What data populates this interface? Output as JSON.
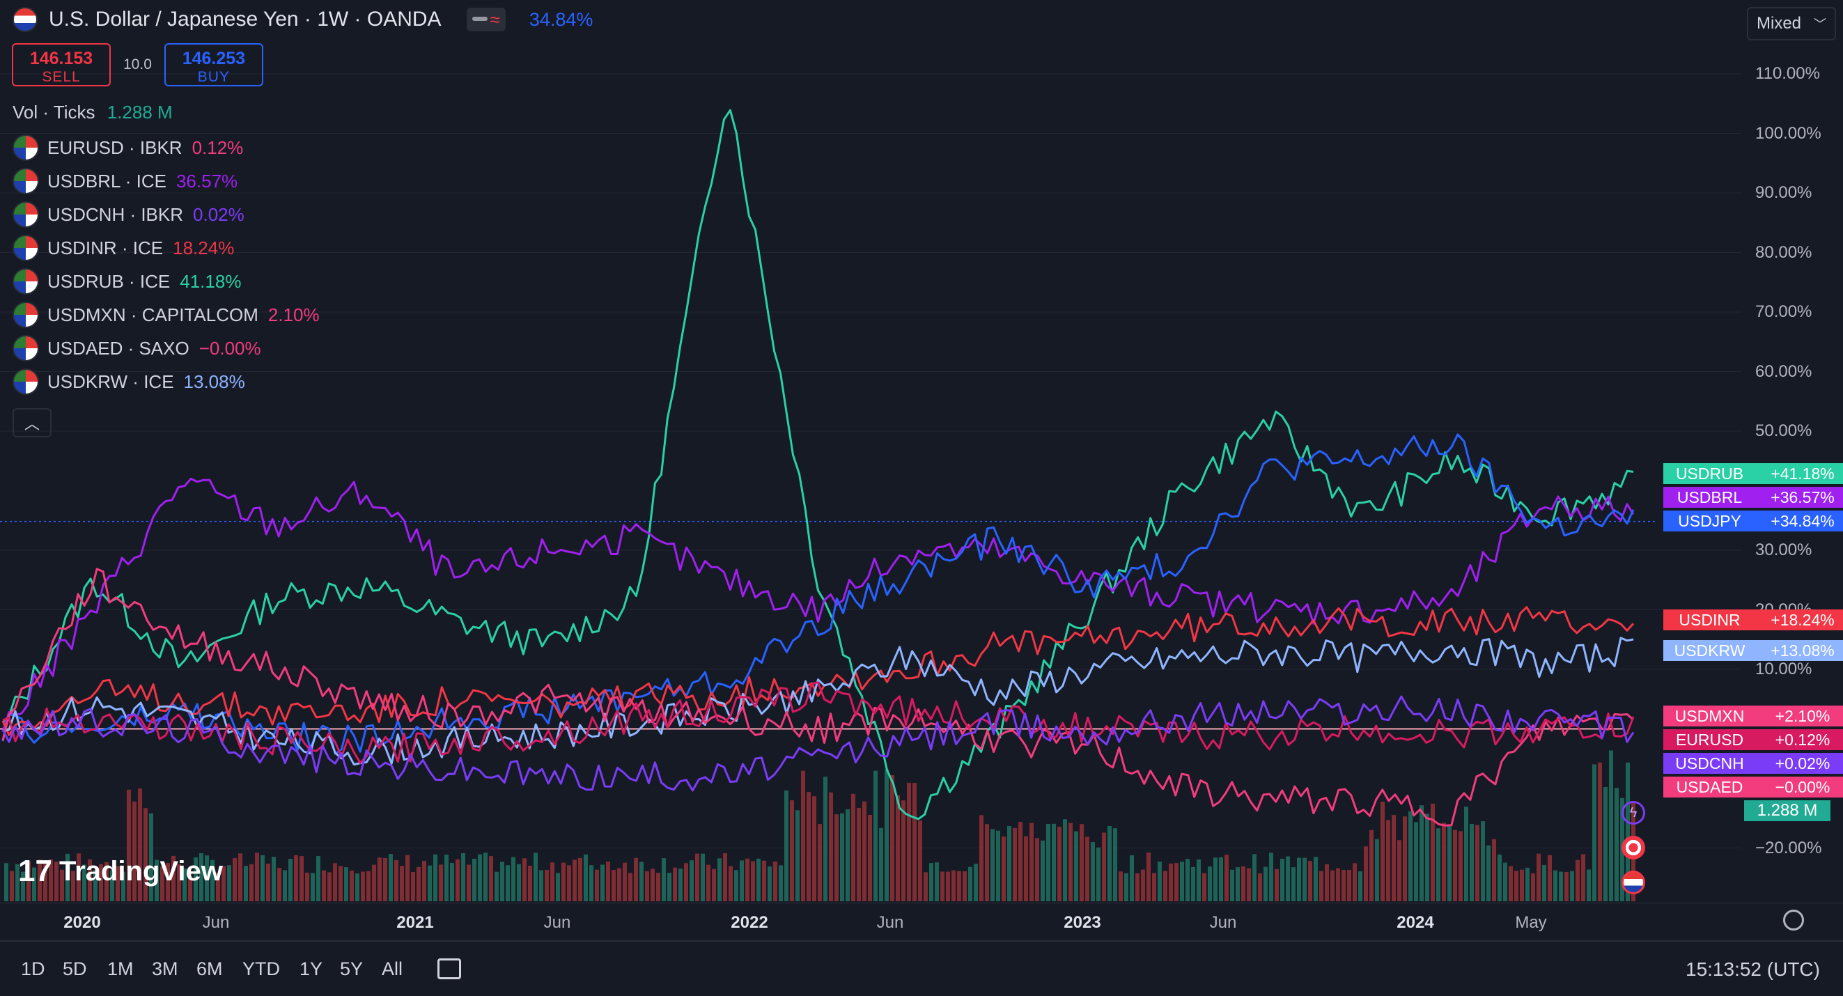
{
  "header": {
    "title": "U.S. Dollar / Japanese Yen · 1W · OANDA",
    "percent": "34.84%"
  },
  "trade": {
    "sell_price": "146.153",
    "sell_label": "SELL",
    "spread": "10.0",
    "buy_price": "146.253",
    "buy_label": "BUY"
  },
  "volume": {
    "label": "Vol · Ticks",
    "value": "1.288 M"
  },
  "legend": [
    {
      "label": "EURUSD · IBKR",
      "pct": "0.12%",
      "color": "#f23c7d"
    },
    {
      "label": "USDBRL · ICE",
      "pct": "36.57%",
      "color": "#a020f0"
    },
    {
      "label": "USDCNH · IBKR",
      "pct": "0.02%",
      "color": "#7b3cf7"
    },
    {
      "label": "USDINR · ICE",
      "pct": "18.24%",
      "color": "#f23645"
    },
    {
      "label": "USDRUB · ICE",
      "pct": "41.18%",
      "color": "#2ad0a6"
    },
    {
      "label": "USDMXN · CAPITALCOM",
      "pct": "2.10%",
      "color": "#f23c7d"
    },
    {
      "label": "USDAED · SAXO",
      "pct": "−0.00%",
      "color": "#f23c7d"
    },
    {
      "label": "USDKRW · ICE",
      "pct": "13.08%",
      "color": "#8fb5ff"
    }
  ],
  "scale_mode": "Mixed",
  "y_axis": [
    "110.00%",
    "100.00%",
    "90.00%",
    "80.00%",
    "70.00%",
    "60.00%",
    "50.00%",
    "30.00%",
    "20.00%",
    "10.00%",
    "−20.00%"
  ],
  "right_tags": [
    {
      "name": "USDRUB",
      "pct": "+41.18%",
      "color": "#2ad0a6"
    },
    {
      "name": "USDBRL",
      "pct": "+36.57%",
      "color": "#a020f0"
    },
    {
      "name": "USDJPY",
      "pct": "+34.84%",
      "color": "#2962ff"
    },
    {
      "name": "USDINR",
      "pct": "+18.24%",
      "color": "#f23645"
    },
    {
      "name": "USDKRW",
      "pct": "+13.08%",
      "color": "#8fb5ff"
    },
    {
      "name": "USDMXN",
      "pct": "+2.10%",
      "color": "#f23c7d"
    },
    {
      "name": "EURUSD",
      "pct": "+0.12%",
      "color": "#d81b60"
    },
    {
      "name": "USDCNH",
      "pct": "+0.02%",
      "color": "#7b3cf7"
    },
    {
      "name": "USDAED",
      "pct": "−0.00%",
      "color": "#f23c7d"
    }
  ],
  "volume_tag": "1.288 M",
  "x_axis": [
    {
      "label": "2020",
      "bold": true
    },
    {
      "label": "Jun",
      "bold": false
    },
    {
      "label": "2021",
      "bold": true
    },
    {
      "label": "Jun",
      "bold": false
    },
    {
      "label": "2022",
      "bold": true
    },
    {
      "label": "Jun",
      "bold": false
    },
    {
      "label": "2023",
      "bold": true
    },
    {
      "label": "Jun",
      "bold": false
    },
    {
      "label": "2024",
      "bold": true
    },
    {
      "label": "May",
      "bold": false
    }
  ],
  "ranges": [
    "1D",
    "5D",
    "1M",
    "3M",
    "6M",
    "YTD",
    "1Y",
    "5Y",
    "All"
  ],
  "clock": "15:13:52 (UTC)",
  "watermark": "TradingView",
  "chart_data": {
    "type": "line",
    "x": [
      "2020-01",
      "2020-03",
      "2020-06",
      "2020-09",
      "2021-01",
      "2021-06",
      "2021-09",
      "2022-01",
      "2022-03",
      "2022-04",
      "2022-06",
      "2022-09",
      "2023-01",
      "2023-06",
      "2023-09",
      "2024-01",
      "2024-05",
      "2024-08",
      "2024-09"
    ],
    "ylim": [
      -30,
      115
    ],
    "series": [
      {
        "name": "USDRUB",
        "color": "#2ad0a6",
        "values": [
          0,
          25,
          10,
          22,
          24,
          18,
          14,
          22,
          108,
          25,
          -15,
          0,
          20,
          40,
          52,
          36,
          45,
          36,
          41.18
        ]
      },
      {
        "name": "USDBRL",
        "color": "#a020f0",
        "values": [
          0,
          20,
          42,
          34,
          40,
          25,
          30,
          32,
          25,
          20,
          30,
          30,
          25,
          22,
          20,
          20,
          22,
          38,
          36.57
        ]
      },
      {
        "name": "USDJPY",
        "color": "#2962ff",
        "values": [
          0,
          0,
          3,
          -1,
          -2,
          2,
          3,
          6,
          8,
          18,
          26,
          32,
          24,
          28,
          44,
          45,
          48,
          34,
          34.84
        ]
      },
      {
        "name": "USDINR",
        "color": "#f23645",
        "values": [
          0,
          6,
          5,
          3,
          3,
          5,
          4,
          5,
          6,
          8,
          10,
          14,
          15,
          17,
          18,
          18,
          18,
          18,
          18.24
        ]
      },
      {
        "name": "USDKRW",
        "color": "#8fb5ff",
        "values": [
          0,
          4,
          2,
          -2,
          -4,
          -2,
          -1,
          1,
          3,
          6,
          12,
          6,
          10,
          12,
          13,
          12,
          14,
          11,
          13.08
        ]
      },
      {
        "name": "USDMXN",
        "color": "#f23c7d",
        "values": [
          0,
          25,
          15,
          10,
          5,
          2,
          5,
          3,
          2,
          0,
          2,
          -2,
          -3,
          -10,
          -12,
          -12,
          -14,
          0,
          2.1
        ]
      },
      {
        "name": "EURUSD",
        "color": "#d81b60",
        "values": [
          0,
          2,
          0,
          -2,
          -4,
          -2,
          -1,
          2,
          3,
          6,
          3,
          2,
          0,
          -1,
          -1,
          0,
          -1,
          0,
          0.12
        ]
      },
      {
        "name": "USDCNH",
        "color": "#7b3cf7",
        "values": [
          0,
          1,
          0,
          -4,
          -6,
          -7,
          -8,
          -8,
          -8,
          -5,
          -2,
          1,
          -1,
          2,
          3,
          3,
          3,
          1,
          0.02
        ]
      },
      {
        "name": "USDAED",
        "color": "#f23c7d",
        "values": [
          0,
          0,
          0,
          0,
          0,
          0,
          0,
          0,
          0,
          0,
          0,
          0,
          0,
          0,
          0,
          0,
          0,
          0,
          0
        ]
      }
    ]
  }
}
